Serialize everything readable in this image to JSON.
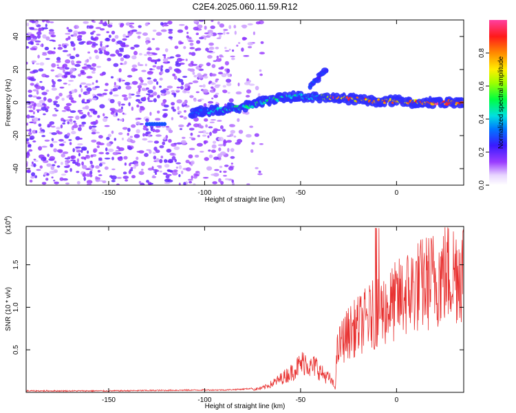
{
  "title": "C2E4.2025.060.11.59.R12",
  "colors": {
    "snr_line": "#e8302f",
    "spectrogram_ridge": "#ff2a55",
    "background": "#ffffff"
  },
  "chart_data": [
    {
      "type": "heatmap",
      "name": "spectrogram",
      "xlabel": "Height of straight line (km)",
      "ylabel": "Frequency (Hz)",
      "xlim": [
        -193,
        35
      ],
      "ylim": [
        -50,
        50
      ],
      "xticks": [
        -150,
        -100,
        -50,
        0
      ],
      "yticks": [
        -40,
        -20,
        0,
        20,
        40
      ],
      "colorbar": {
        "label": "Normalized spectral amplitude",
        "range": [
          0.0,
          1.0
        ],
        "ticks": [
          "0.0",
          "0.2",
          "0.4",
          "0.6",
          "0.8"
        ],
        "colormap": "rainbow (purple-blue-cyan-green-yellow-red-pink)"
      },
      "noise_region_x": [
        -193,
        -85
      ],
      "signal_track": [
        {
          "x": -107,
          "freq": -6,
          "amp": 0.35
        },
        {
          "x": -95,
          "freq": -5,
          "amp": 0.45
        },
        {
          "x": -80,
          "freq": -3,
          "amp": 0.5
        },
        {
          "x": -65,
          "freq": 2,
          "amp": 0.5
        },
        {
          "x": -50,
          "freq": 4,
          "amp": 0.45
        },
        {
          "x": -42,
          "freq": 3,
          "amp": 0.4
        },
        {
          "x": -33,
          "freq": 3,
          "amp": 0.9
        },
        {
          "x": -20,
          "freq": 2,
          "amp": 0.85
        },
        {
          "x": -10,
          "freq": 1,
          "amp": 0.8
        },
        {
          "x": 0,
          "freq": 1,
          "amp": 0.85
        },
        {
          "x": 10,
          "freq": 0,
          "amp": 0.85
        },
        {
          "x": 20,
          "freq": 0,
          "amp": 0.95
        },
        {
          "x": 35,
          "freq": 0,
          "amp": 0.95
        }
      ],
      "branch_track": [
        {
          "x": -45,
          "freq": 10,
          "amp": 0.3
        },
        {
          "x": -40,
          "freq": 16,
          "amp": 0.3
        },
        {
          "x": -36,
          "freq": 20,
          "amp": 0.25
        }
      ]
    },
    {
      "type": "line",
      "name": "snr",
      "xlabel": "Height of straight line (km)",
      "ylabel": "SNR (10 * v/v)",
      "ymultiplier": "(x10",
      "ymultiplier_exp": "4",
      "ymultiplier_close": ")",
      "xlim": [
        -193,
        35
      ],
      "ylim": [
        0.0,
        1.95
      ],
      "xticks": [
        -150,
        -100,
        -50,
        0
      ],
      "yticks": [
        0.5,
        1.0,
        1.5
      ],
      "ytick_labels": [
        "0.5",
        "1.0",
        "1.5"
      ],
      "series": [
        {
          "x": [
            -193,
            -150,
            -100,
            -90,
            -80,
            -75,
            -70,
            -65,
            -60,
            -55,
            -50,
            -47,
            -45,
            -42,
            -40,
            -38,
            -35,
            -33,
            -32,
            -31,
            -30,
            -28,
            -25,
            -20,
            -15,
            -10,
            -5,
            0,
            5,
            10,
            15,
            20,
            25,
            30,
            35
          ],
          "y": [
            0.01,
            0.01,
            0.02,
            0.02,
            0.03,
            0.04,
            0.06,
            0.12,
            0.2,
            0.28,
            0.4,
            0.45,
            0.35,
            0.38,
            0.3,
            0.25,
            0.2,
            0.12,
            0.05,
            0.55,
            0.65,
            0.75,
            0.85,
            0.95,
            1.05,
            1.15,
            1.2,
            1.3,
            1.4,
            1.5,
            1.55,
            1.62,
            1.68,
            1.72,
            1.78
          ]
        }
      ]
    }
  ]
}
